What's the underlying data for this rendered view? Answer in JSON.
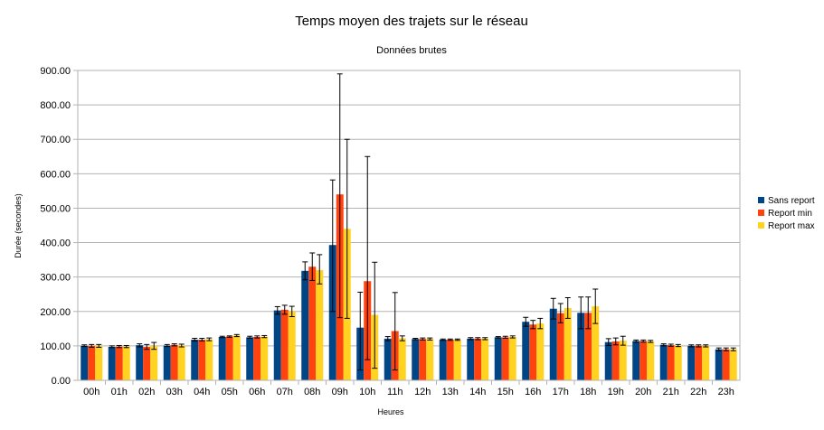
{
  "chart_data": {
    "type": "bar",
    "title": "Temps moyen des trajets sur le réseau",
    "subtitle": "Données brutes",
    "xlabel": "Heures",
    "ylabel": "Durée (secondes)",
    "ylim": [
      0,
      900
    ],
    "yticks": [
      "0.00",
      "100.00",
      "200.00",
      "300.00",
      "400.00",
      "500.00",
      "600.00",
      "700.00",
      "800.00",
      "900.00"
    ],
    "categories": [
      "00h",
      "01h",
      "02h",
      "03h",
      "04h",
      "05h",
      "06h",
      "07h",
      "08h",
      "09h",
      "10h",
      "11h",
      "12h",
      "13h",
      "14h",
      "15h",
      "16h",
      "17h",
      "18h",
      "19h",
      "20h",
      "21h",
      "22h",
      "23h"
    ],
    "grid": true,
    "legend_position": "right",
    "series": [
      {
        "name": "Sans report",
        "color": "#004586",
        "values": [
          100,
          97,
          102,
          101,
          118,
          126,
          125,
          203,
          318,
          393,
          153,
          121,
          120,
          118,
          121,
          125,
          170,
          208,
          196,
          111,
          114,
          103,
          100,
          90
        ],
        "errors": [
          [
            98,
            103
          ],
          [
            95,
            100
          ],
          [
            97,
            106
          ],
          [
            98,
            104
          ],
          [
            114,
            122
          ],
          [
            124,
            128
          ],
          [
            122,
            128
          ],
          [
            192,
            214
          ],
          [
            292,
            344
          ],
          [
            200,
            582
          ],
          [
            30,
            256
          ],
          [
            115,
            127
          ],
          [
            118,
            122
          ],
          [
            116,
            120
          ],
          [
            118,
            124
          ],
          [
            123,
            127
          ],
          [
            157,
            183
          ],
          [
            178,
            238
          ],
          [
            150,
            242
          ],
          [
            101,
            121
          ],
          [
            111,
            117
          ],
          [
            100,
            106
          ],
          [
            97,
            103
          ],
          [
            86,
            94
          ]
        ]
      },
      {
        "name": "Report min",
        "color": "#ff420e",
        "values": [
          100,
          98,
          97,
          103,
          118,
          127,
          126,
          205,
          330,
          540,
          288,
          143,
          120,
          118,
          121,
          125,
          162,
          195,
          196,
          113,
          114,
          102,
          100,
          90
        ],
        "errors": [
          [
            96,
            104
          ],
          [
            95,
            101
          ],
          [
            90,
            104
          ],
          [
            100,
            106
          ],
          [
            114,
            122
          ],
          [
            125,
            129
          ],
          [
            123,
            129
          ],
          [
            192,
            218
          ],
          [
            290,
            370
          ],
          [
            182,
            890
          ],
          [
            60,
            650
          ],
          [
            30,
            255
          ],
          [
            117,
            123
          ],
          [
            116,
            120
          ],
          [
            118,
            124
          ],
          [
            122,
            128
          ],
          [
            150,
            174
          ],
          [
            167,
            223
          ],
          [
            150,
            242
          ],
          [
            103,
            123
          ],
          [
            111,
            117
          ],
          [
            99,
            105
          ],
          [
            97,
            103
          ],
          [
            86,
            94
          ]
        ]
      },
      {
        "name": "Report max",
        "color": "#ffd320",
        "values": [
          100,
          98,
          100,
          101,
          119,
          130,
          127,
          200,
          320,
          440,
          190,
          122,
          120,
          118,
          121,
          126,
          165,
          210,
          215,
          115,
          113,
          101,
          100,
          90
        ],
        "errors": [
          [
            96,
            104
          ],
          [
            95,
            101
          ],
          [
            90,
            110
          ],
          [
            97,
            105
          ],
          [
            115,
            123
          ],
          [
            127,
            133
          ],
          [
            124,
            130
          ],
          [
            185,
            215
          ],
          [
            280,
            365
          ],
          [
            180,
            700
          ],
          [
            35,
            343
          ],
          [
            115,
            129
          ],
          [
            117,
            123
          ],
          [
            116,
            120
          ],
          [
            118,
            124
          ],
          [
            123,
            129
          ],
          [
            150,
            180
          ],
          [
            180,
            240
          ],
          [
            165,
            265
          ],
          [
            102,
            128
          ],
          [
            110,
            116
          ],
          [
            98,
            104
          ],
          [
            97,
            103
          ],
          [
            86,
            94
          ]
        ]
      }
    ]
  }
}
